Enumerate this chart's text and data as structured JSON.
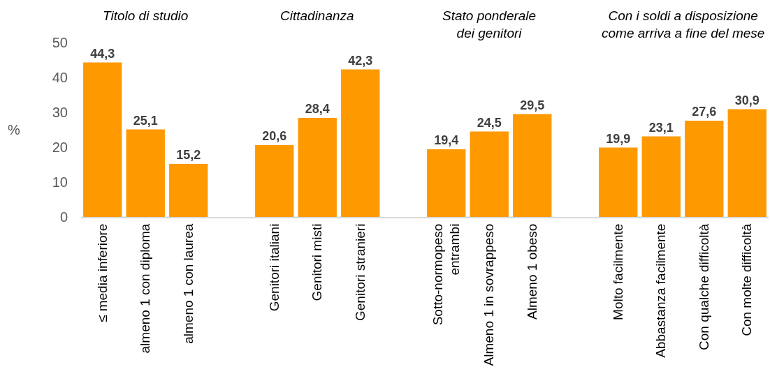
{
  "chart_data": {
    "type": "bar",
    "ylabel": "%",
    "annotations": [
      "Titolo di studio",
      "Cittadinanza",
      "Stato ponderale\ndei genitori",
      "Con i soldi a disposizione\ncome arriva a fine del mese"
    ],
    "categories": [
      "≤ media inferiore",
      "almeno 1 con diploma",
      "almeno 1 con laurea",
      null,
      "Genitori italiani",
      "Genitori misti",
      "Genitori stranieri",
      null,
      "Sotto-normopeso\nentrambi",
      "Almeno 1 in sovrappeso",
      "Almeno 1 obeso",
      null,
      "Molto facilmente",
      "Abbastanza facilmente",
      "Con qualche difficoltà",
      "Con molte difficoltà"
    ],
    "values": [
      44.3,
      25.1,
      15.2,
      null,
      20.6,
      28.4,
      42.3,
      null,
      19.4,
      24.5,
      29.5,
      null,
      19.9,
      23.1,
      27.6,
      30.9
    ],
    "value_labels": [
      "44,3",
      "25,1",
      "15,2",
      null,
      "20,6",
      "28,4",
      "42,3",
      null,
      "19,4",
      "24,5",
      "29,5",
      null,
      "19,9",
      "23,1",
      "27,6",
      "30,9"
    ],
    "color": "#ff9900",
    "ylim": [
      0,
      50
    ],
    "yticks": [
      0,
      10,
      20,
      30,
      40,
      50
    ]
  }
}
